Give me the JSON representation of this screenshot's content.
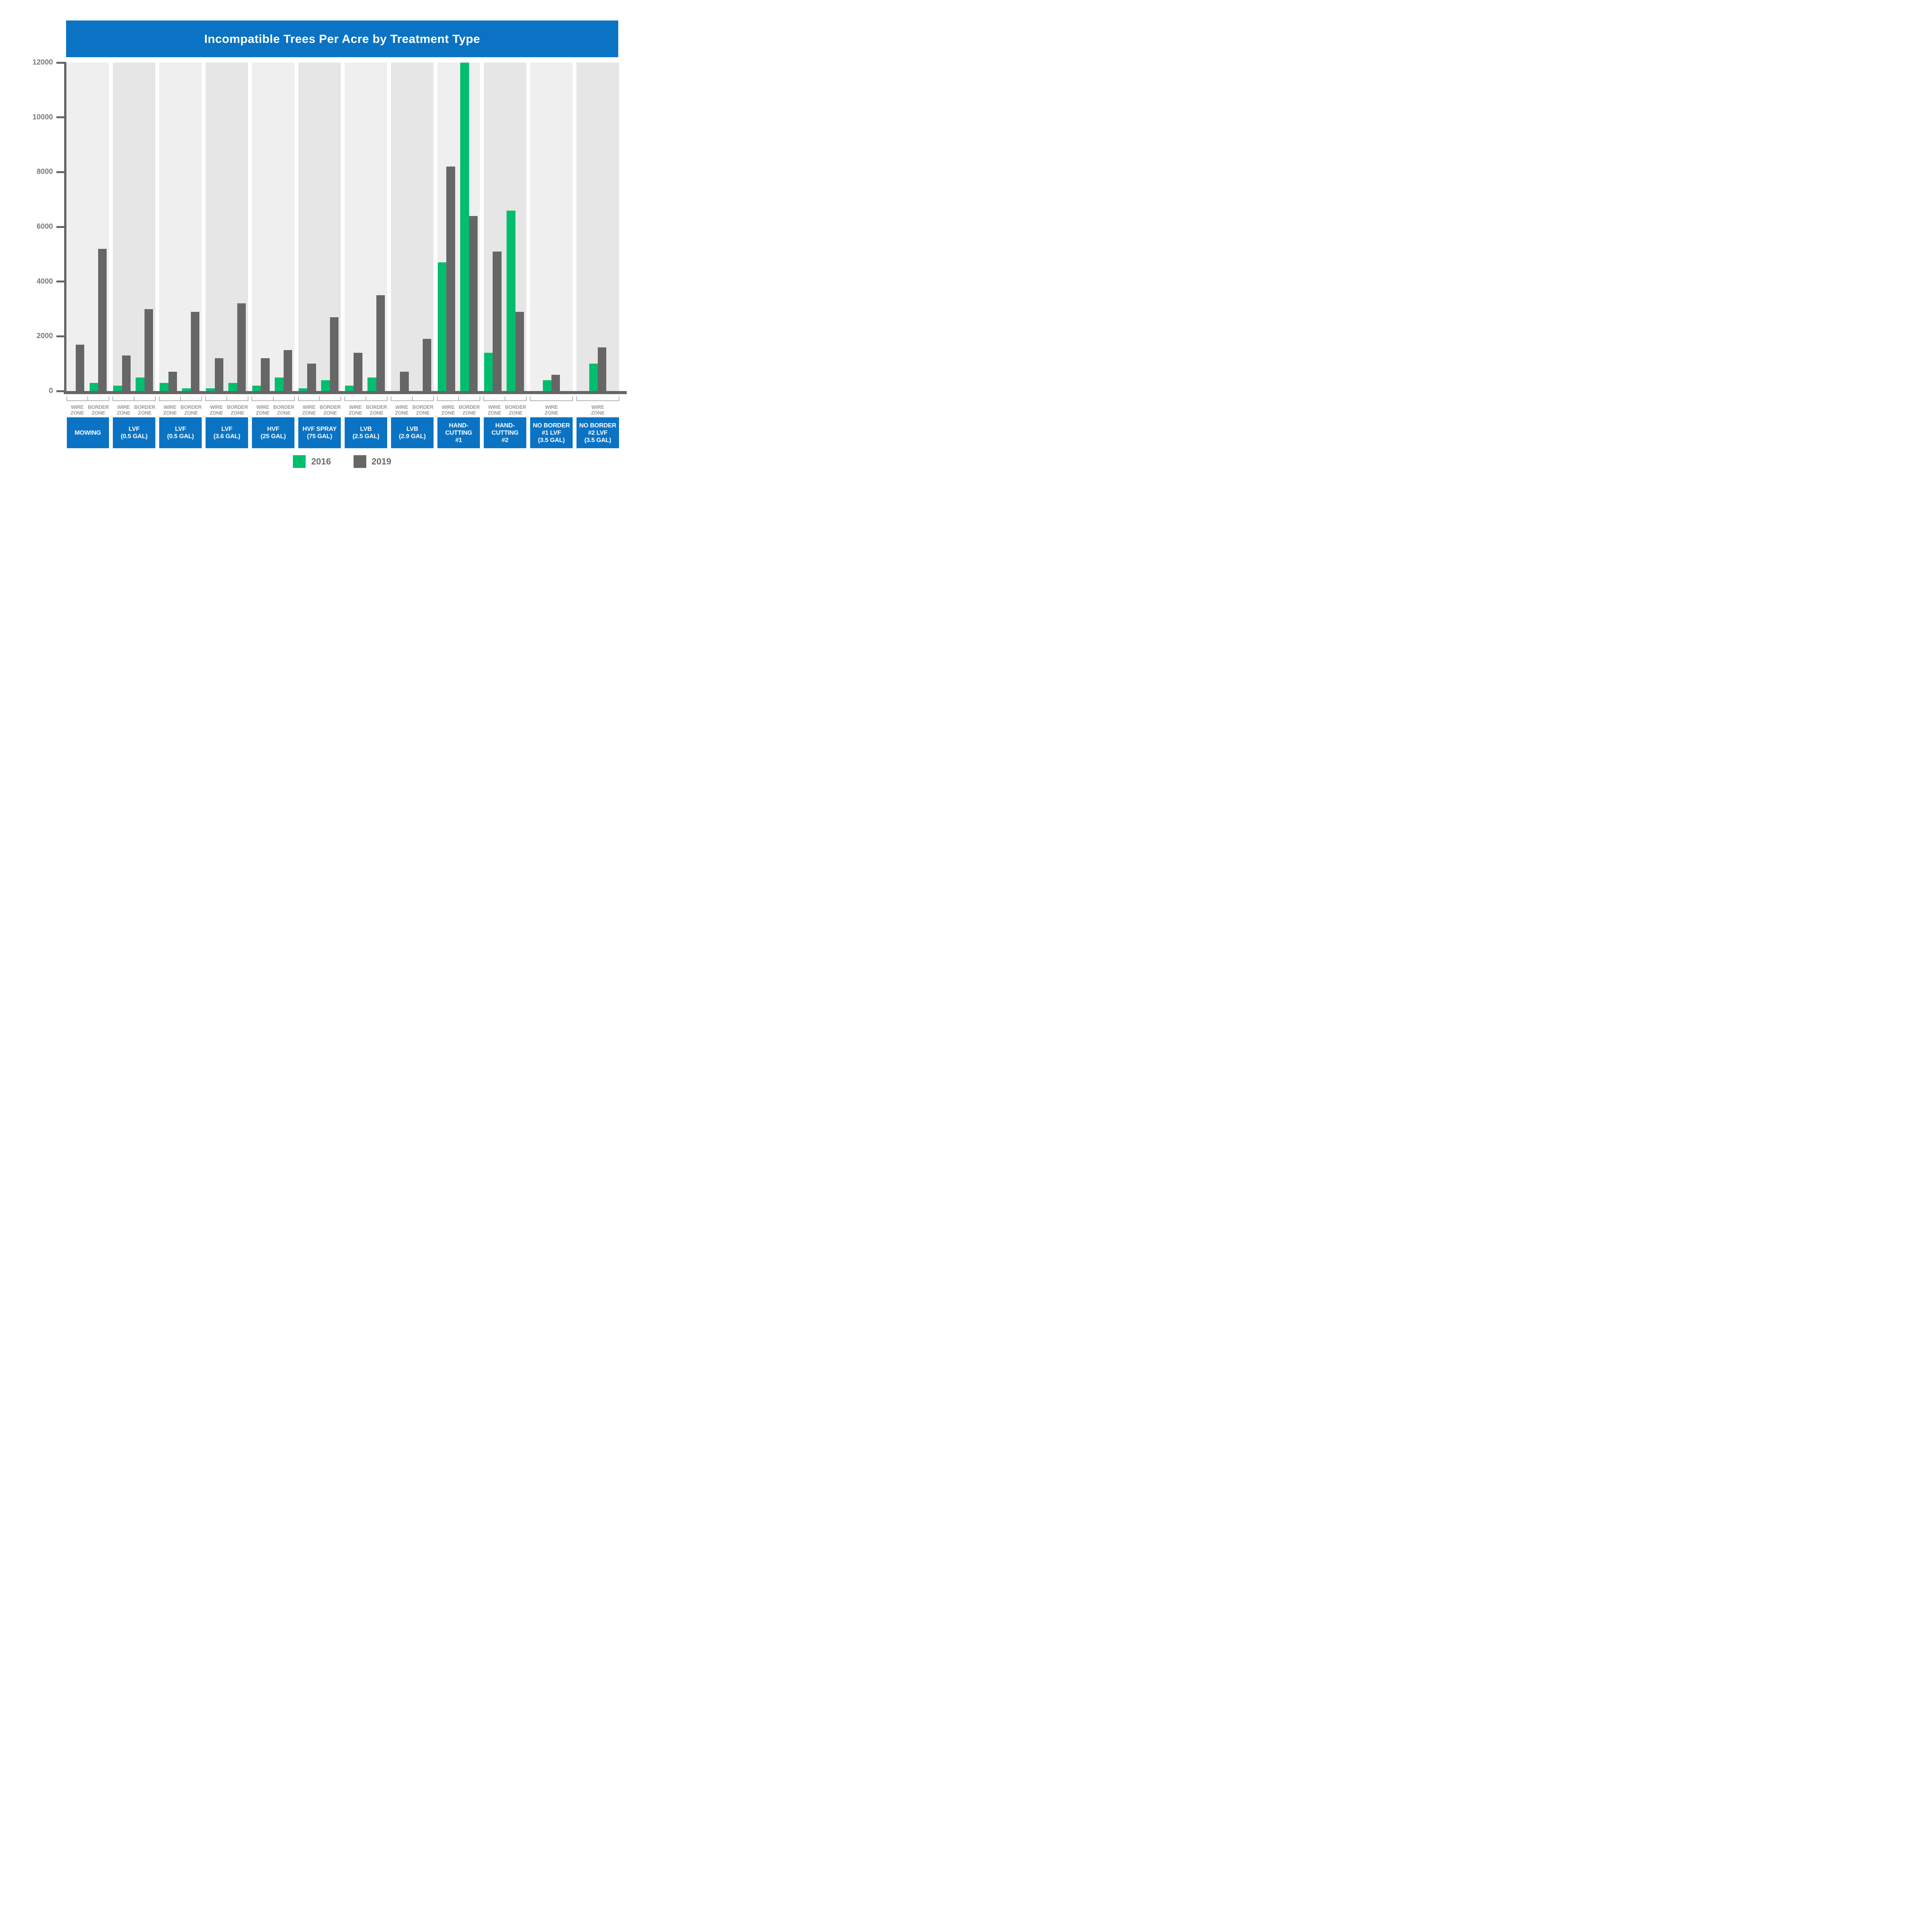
{
  "title": "Incompatible Trees Per Acre by Treatment Type",
  "colors": {
    "banner_blue": "#0B73C4",
    "bar_green": "#00BE6E",
    "bar_gray": "#666666",
    "panel_light": "#F0EFEF",
    "panel_dark": "#E7E6E6",
    "axis": "#666666",
    "tick_label": "#7B7B7B",
    "zone_label": "#9B9B9B",
    "bracket": "#B3B3B3",
    "legend_text": "#6B6B6B"
  },
  "legend": [
    {
      "label": "2016",
      "color": "#00BE6E"
    },
    {
      "label": "2019",
      "color": "#666666"
    }
  ],
  "chart_data": {
    "type": "bar",
    "title": "Incompatible Trees Per Acre by Treatment Type",
    "xlabel": "",
    "ylabel": "",
    "ylim": [
      0,
      12000
    ],
    "y_ticks": [
      0,
      2000,
      4000,
      6000,
      8000,
      10000,
      12000
    ],
    "grid": false,
    "legend_position": "bottom",
    "series": [
      "2016",
      "2019"
    ],
    "groups": [
      {
        "treatment": "MOWING",
        "box_label": "MOWING",
        "zones": [
          {
            "zone": "WIRE ZONE",
            "values": {
              "2016": 0,
              "2019": 1700
            }
          },
          {
            "zone": "BORDER ZONE",
            "values": {
              "2016": 300,
              "2019": 5200
            }
          }
        ]
      },
      {
        "treatment": "LVF (0.5 GAL)",
        "box_label": "LVF\n(0.5 GAL)",
        "zones": [
          {
            "zone": "WIRE ZONE",
            "values": {
              "2016": 200,
              "2019": 1300
            }
          },
          {
            "zone": "BORDER ZONE",
            "values": {
              "2016": 500,
              "2019": 3000
            }
          }
        ]
      },
      {
        "treatment": "LVF (0.5 GAL)",
        "box_label": "LVF\n(0.5 GAL)",
        "zones": [
          {
            "zone": "WIRE ZONE",
            "values": {
              "2016": 300,
              "2019": 700
            }
          },
          {
            "zone": "BORDER ZONE",
            "values": {
              "2016": 100,
              "2019": 2900
            }
          }
        ]
      },
      {
        "treatment": "LVF (3.6 GAL)",
        "box_label": "LVF\n(3.6 GAL)",
        "zones": [
          {
            "zone": "WIRE ZONE",
            "values": {
              "2016": 100,
              "2019": 1200
            }
          },
          {
            "zone": "BORDER ZONE",
            "values": {
              "2016": 300,
              "2019": 3200
            }
          }
        ]
      },
      {
        "treatment": "HVF (25 GAL)",
        "box_label": "HVF\n(25 GAL)",
        "zones": [
          {
            "zone": "WIRE ZONE",
            "values": {
              "2016": 200,
              "2019": 1200
            }
          },
          {
            "zone": "BORDER ZONE",
            "values": {
              "2016": 500,
              "2019": 1500
            }
          }
        ]
      },
      {
        "treatment": "HVF SPRAY (75 GAL)",
        "box_label": "HVF SPRAY\n(75 GAL)",
        "zones": [
          {
            "zone": "WIRE ZONE",
            "values": {
              "2016": 100,
              "2019": 1000
            }
          },
          {
            "zone": "BORDER ZONE",
            "values": {
              "2016": 400,
              "2019": 2700
            }
          }
        ]
      },
      {
        "treatment": "LVB (2.5 GAL)",
        "box_label": "LVB\n(2.5 GAL)",
        "zones": [
          {
            "zone": "WIRE ZONE",
            "values": {
              "2016": 200,
              "2019": 1400
            }
          },
          {
            "zone": "BORDER ZONE",
            "values": {
              "2016": 500,
              "2019": 3500
            }
          }
        ]
      },
      {
        "treatment": "LVB (2.9 GAL)",
        "box_label": "LVB\n(2.9 GAL)",
        "zones": [
          {
            "zone": "WIRE ZONE",
            "values": {
              "2016": 0,
              "2019": 700
            }
          },
          {
            "zone": "BORDER ZONE",
            "values": {
              "2016": 0,
              "2019": 1900
            }
          }
        ]
      },
      {
        "treatment": "HAND-CUTTING #1",
        "box_label": "HAND-\nCUTTING\n#1",
        "zones": [
          {
            "zone": "WIRE ZONE",
            "values": {
              "2016": 4700,
              "2019": 8200
            }
          },
          {
            "zone": "BORDER ZONE",
            "values": {
              "2016": 12000,
              "2019": 6400
            }
          }
        ]
      },
      {
        "treatment": "HAND-CUTTING #2",
        "box_label": "HAND-\nCUTTING\n#2",
        "zones": [
          {
            "zone": "WIRE ZONE",
            "values": {
              "2016": 1400,
              "2019": 5100
            }
          },
          {
            "zone": "BORDER ZONE",
            "values": {
              "2016": 6600,
              "2019": 2900
            }
          }
        ]
      },
      {
        "treatment": "NO BORDER #1 LVF (3.5 GAL)",
        "box_label": "NO BORDER\n#1 LVF\n(3.5 GAL)",
        "zones": [
          {
            "zone": "WIRE ZONE",
            "values": {
              "2016": 400,
              "2019": 600
            }
          }
        ]
      },
      {
        "treatment": "NO BORDER #2 LVF (3.5 GAL)",
        "box_label": "NO BORDER\n#2 LVF\n(3.5 GAL)",
        "zones": [
          {
            "zone": "WIRE ZONE",
            "values": {
              "2016": 1000,
              "2019": 1600
            }
          }
        ]
      }
    ]
  }
}
